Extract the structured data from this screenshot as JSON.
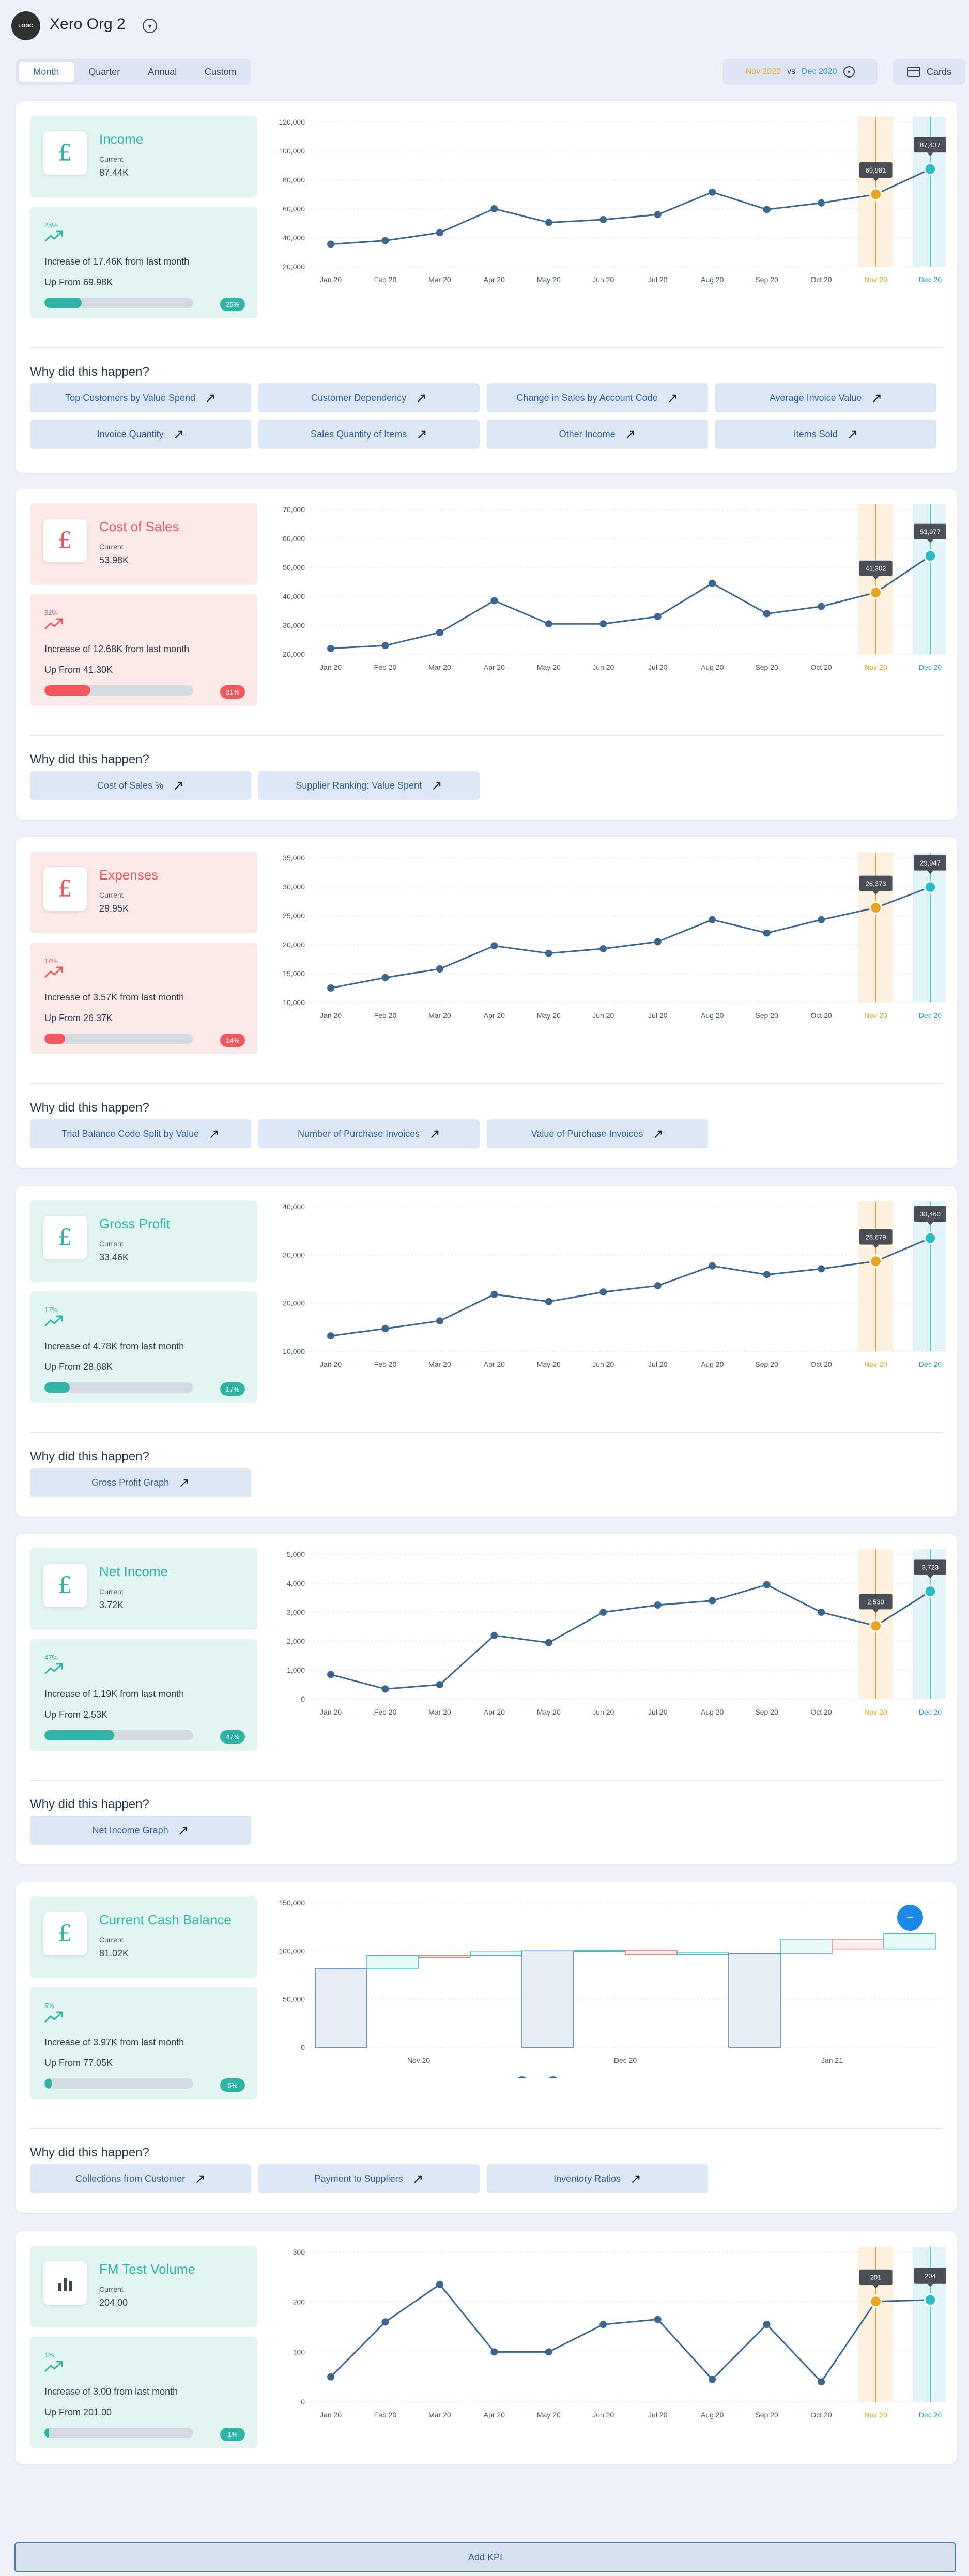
{
  "header": {
    "logo_text": "LOGO",
    "org_name": "Xero Org 2",
    "tabs": [
      "Month",
      "Quarter",
      "Annual",
      "Custom"
    ],
    "active_tab": "Month",
    "compare_a": "Nov 2020",
    "compare_vs": "vs",
    "compare_b": "Dec 2020",
    "cards_label": "Cards"
  },
  "months": [
    "Jan 20",
    "Feb 20",
    "Mar 20",
    "Apr 20",
    "May 20",
    "Jun 20",
    "Jul 20",
    "Aug 20",
    "Sep 20",
    "Oct 20",
    "Nov 20",
    "Dec 20"
  ],
  "why_title": "Why did this happen?",
  "kpis": [
    {
      "name": "Income",
      "theme": "teal",
      "current_label": "Current",
      "current": "87.44K",
      "pct": "25%",
      "increase": "Increase of 17.46K from last month",
      "up_from": "Up From 69.98K",
      "progress": 0.25,
      "chart_data": {
        "type": "line",
        "yticks": [
          "20,000",
          "40,000",
          "60,000",
          "80,000",
          "100,000",
          "120,000"
        ],
        "ylim": [
          20000,
          120000
        ],
        "values": [
          35500,
          38000,
          43500,
          60000,
          50500,
          52500,
          56000,
          71500,
          59500,
          64000,
          69981,
          87437
        ],
        "tip_a": "69,981",
        "tip_b": "87,437"
      },
      "reasons": [
        "Top Customers by Value Spend",
        "Customer Dependency",
        "Change in Sales by Account Code",
        "Average Invoice Value",
        "Invoice Quantity",
        "Sales Quantity of Items",
        "Other Income",
        "Items Sold"
      ]
    },
    {
      "name": "Cost of Sales",
      "theme": "red",
      "current_label": "Current",
      "current": "53.98K",
      "pct": "31%",
      "increase": "Increase of 12.68K from last month",
      "up_from": "Up From 41.30K",
      "progress": 0.31,
      "chart_data": {
        "type": "line",
        "yticks": [
          "20,000",
          "30,000",
          "40,000",
          "50,000",
          "60,000",
          "70,000"
        ],
        "ylim": [
          20000,
          70000
        ],
        "values": [
          22000,
          23000,
          27500,
          38500,
          30500,
          30500,
          33000,
          44500,
          34000,
          36500,
          41302,
          53977
        ],
        "tip_a": "41,302",
        "tip_b": "53,977"
      },
      "reasons": [
        "Cost of Sales %",
        "Supplier Ranking: Value Spent"
      ]
    },
    {
      "name": "Expenses",
      "theme": "red",
      "current_label": "Current",
      "current": "29.95K",
      "pct": "14%",
      "increase": "Increase of 3.57K from last month",
      "up_from": "Up From 26.37K",
      "progress": 0.14,
      "chart_data": {
        "type": "line",
        "yticks": [
          "10,000",
          "15,000",
          "20,000",
          "25,000",
          "30,000",
          "35,000"
        ],
        "ylim": [
          10000,
          35000
        ],
        "values": [
          12500,
          14300,
          15800,
          19800,
          18500,
          19300,
          20500,
          24300,
          22000,
          24300,
          26373,
          29947
        ],
        "tip_a": "26,373",
        "tip_b": "29,947"
      },
      "reasons": [
        "Trial Balance Code Split by Value",
        "Number of Purchase Invoices",
        "Value of Purchase Invoices"
      ]
    },
    {
      "name": "Gross Profit",
      "theme": "teal",
      "current_label": "Current",
      "current": "33.46K",
      "pct": "17%",
      "increase": "Increase of 4.78K from last month",
      "up_from": "Up From 28.68K",
      "progress": 0.17,
      "chart_data": {
        "type": "line",
        "yticks": [
          "10,000",
          "20,000",
          "30,000",
          "40,000"
        ],
        "ylim": [
          10000,
          40000
        ],
        "values": [
          13200,
          14700,
          16300,
          21800,
          20300,
          22300,
          23600,
          27700,
          25900,
          27100,
          28679,
          33460
        ],
        "tip_a": "28,679",
        "tip_b": "33,460"
      },
      "reasons": [
        "Gross Profit Graph"
      ]
    },
    {
      "name": "Net Income",
      "theme": "teal",
      "current_label": "Current",
      "current": "3.72K",
      "pct": "47%",
      "increase": "Increase of 1.19K from last month",
      "up_from": "Up From 2.53K",
      "progress": 0.47,
      "chart_data": {
        "type": "line",
        "yticks": [
          "0",
          "1,000",
          "2,000",
          "3,000",
          "4,000",
          "5,000"
        ],
        "ylim": [
          0,
          5000
        ],
        "values": [
          850,
          350,
          500,
          2200,
          1950,
          3000,
          3250,
          3400,
          3950,
          3000,
          2530,
          3723
        ],
        "tip_a": "2,530",
        "tip_b": "3,723"
      },
      "reasons": [
        "Net Income Graph"
      ]
    },
    {
      "name": "Current Cash Balance",
      "theme": "teal",
      "current_label": "Current",
      "current": "81.02K",
      "pct": "5%",
      "increase": "Increase of 3.97K from last month",
      "up_from": "Up From 77.05K",
      "progress": 0.05,
      "chart_data": {
        "type": "bar",
        "yticks": [
          "0",
          "50,000",
          "100,000",
          "150,000"
        ],
        "ylim": [
          0,
          150000
        ],
        "xlabels": [
          "Nov 20",
          "Dec 20",
          "Jan 21"
        ],
        "bars": [
          {
            "base": 0,
            "top": 82000,
            "kind": "total"
          },
          {
            "base": 82000,
            "top": 95000,
            "kind": "up"
          },
          {
            "base": 95000,
            "top": 93000,
            "kind": "down"
          },
          {
            "base": 95000,
            "top": 99000,
            "kind": "up"
          },
          {
            "base": 0,
            "top": 100000,
            "kind": "total"
          },
          {
            "base": 100000,
            "top": 100500,
            "kind": "up"
          },
          {
            "base": 100500,
            "top": 96000,
            "kind": "down"
          },
          {
            "base": 96000,
            "top": 98000,
            "kind": "up"
          },
          {
            "base": 0,
            "top": 97000,
            "kind": "total"
          },
          {
            "base": 97000,
            "top": 112000,
            "kind": "up"
          },
          {
            "base": 112000,
            "top": 102000,
            "kind": "down"
          },
          {
            "base": 102000,
            "top": 118000,
            "kind": "up"
          }
        ]
      },
      "reasons": [
        "Collections from Customer",
        "Payment to Suppliers",
        "Inventory Ratios"
      ]
    },
    {
      "name": "FM Test Volume",
      "theme": "teal",
      "icon": "bar-chart-icon",
      "current_label": "Current",
      "current": "204.00",
      "pct": "1%",
      "increase": "Increase of 3.00 from last month",
      "up_from": "Up From 201.00",
      "progress": 0.01,
      "chart_data": {
        "type": "line",
        "yticks": [
          "0",
          "100",
          "200",
          "300"
        ],
        "ylim": [
          0,
          300
        ],
        "values": [
          50,
          160,
          235,
          100,
          100,
          155,
          165,
          45,
          155,
          40,
          201,
          204
        ],
        "tip_a": "201",
        "tip_b": "204"
      },
      "reasons": []
    }
  ],
  "add_kpi": "Add KPI",
  "colors": {
    "line": "#3a6690",
    "orange": "#e8a524",
    "blue": "#2bbcc8"
  }
}
